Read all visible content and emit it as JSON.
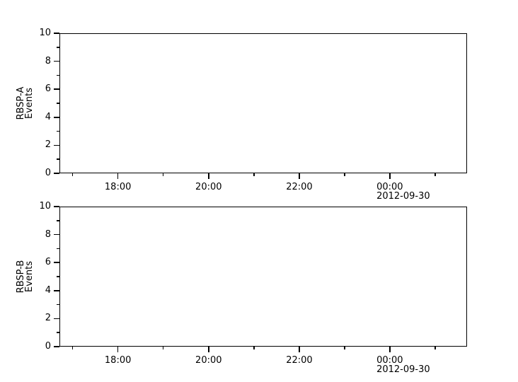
{
  "page": {
    "background_color": "#ffffff",
    "text_color": "#000000",
    "frame_color": "#000000"
  },
  "chart_data": [
    {
      "type": "line",
      "title": "",
      "xlabel": "",
      "ylabel": "RBSP-A Events",
      "ylabel_lines": [
        "RBSP-A",
        "Events"
      ],
      "ylim": [
        0,
        10
      ],
      "y_major_ticks": [
        0,
        2,
        4,
        6,
        8,
        10
      ],
      "y_minor_ticks": [
        1,
        3,
        5,
        7,
        9
      ],
      "x_unit": "hours",
      "x_range_hours": [
        16.71,
        25.7
      ],
      "x_major_ticks": [
        {
          "hour": 18,
          "label": "18:00"
        },
        {
          "hour": 20,
          "label": "20:00"
        },
        {
          "hour": 22,
          "label": "22:00"
        },
        {
          "hour": 24,
          "label": "00:00",
          "date_label": "2012-09-30"
        }
      ],
      "x_minor_ticks_hours": [
        17,
        19,
        21,
        23,
        25
      ],
      "date_annotation": "2012-09-30",
      "series": [],
      "grid": false,
      "legend": null
    },
    {
      "type": "line",
      "title": "",
      "xlabel": "",
      "ylabel": "RBSP-B Events",
      "ylabel_lines": [
        "RBSP-B",
        "Events"
      ],
      "ylim": [
        0,
        10
      ],
      "y_major_ticks": [
        0,
        2,
        4,
        6,
        8,
        10
      ],
      "y_minor_ticks": [
        1,
        3,
        5,
        7,
        9
      ],
      "x_unit": "hours",
      "x_range_hours": [
        16.71,
        25.7
      ],
      "x_major_ticks": [
        {
          "hour": 18,
          "label": "18:00"
        },
        {
          "hour": 20,
          "label": "20:00"
        },
        {
          "hour": 22,
          "label": "22:00"
        },
        {
          "hour": 24,
          "label": "00:00",
          "date_label": "2012-09-30"
        }
      ],
      "x_minor_ticks_hours": [
        17,
        19,
        21,
        23,
        25
      ],
      "date_annotation": "2012-09-30",
      "series": [],
      "grid": false,
      "legend": null
    }
  ]
}
